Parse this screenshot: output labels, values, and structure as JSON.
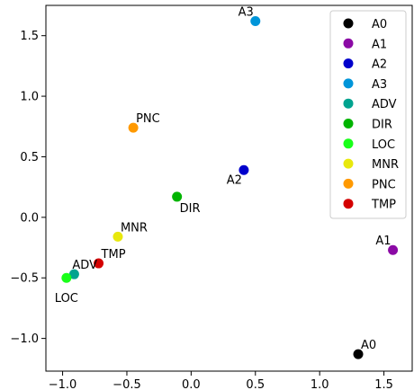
{
  "chart_data": {
    "type": "scatter",
    "title": "",
    "xlabel": "",
    "ylabel": "",
    "xlim": [
      -1.13,
      1.72
    ],
    "ylim": [
      -1.27,
      1.75
    ],
    "xticks": [
      -1.0,
      -0.5,
      0.0,
      0.5,
      1.0,
      1.5
    ],
    "xtick_labels": [
      "−1.0",
      "−0.5",
      "0.0",
      "0.5",
      "1.0",
      "1.5"
    ],
    "yticks": [
      -1.0,
      -0.5,
      0.0,
      0.5,
      1.0,
      1.5
    ],
    "ytick_labels": [
      "−1.0",
      "−0.5",
      "0.0",
      "0.5",
      "1.0",
      "1.5"
    ],
    "grid": false,
    "legend_position": "top-right",
    "points": [
      {
        "name": "A0",
        "x": 1.3,
        "y": -1.13,
        "color": "#000000",
        "label_pos": "above-right"
      },
      {
        "name": "A1",
        "x": 1.57,
        "y": -0.27,
        "color": "#8b0aa5",
        "label_pos": "above-left"
      },
      {
        "name": "A2",
        "x": 0.41,
        "y": 0.39,
        "color": "#0000cc",
        "label_pos": "below-left"
      },
      {
        "name": "A3",
        "x": 0.5,
        "y": 1.62,
        "color": "#0095d9",
        "label_pos": "above-left"
      },
      {
        "name": "ADV",
        "x": -0.91,
        "y": -0.47,
        "color": "#00a38f",
        "label_pos": "above"
      },
      {
        "name": "DIR",
        "x": -0.11,
        "y": 0.17,
        "color": "#00b400",
        "label_pos": "below-right"
      },
      {
        "name": "LOC",
        "x": -0.97,
        "y": -0.5,
        "color": "#19ff19",
        "label_pos": "below"
      },
      {
        "name": "MNR",
        "x": -0.57,
        "y": -0.16,
        "color": "#e8e80d",
        "label_pos": "above-right"
      },
      {
        "name": "PNC",
        "x": -0.45,
        "y": 0.74,
        "color": "#ff9900",
        "label_pos": "above-right"
      },
      {
        "name": "TMP",
        "x": -0.72,
        "y": -0.38,
        "color": "#d40000",
        "label_pos": "above-right"
      }
    ]
  }
}
